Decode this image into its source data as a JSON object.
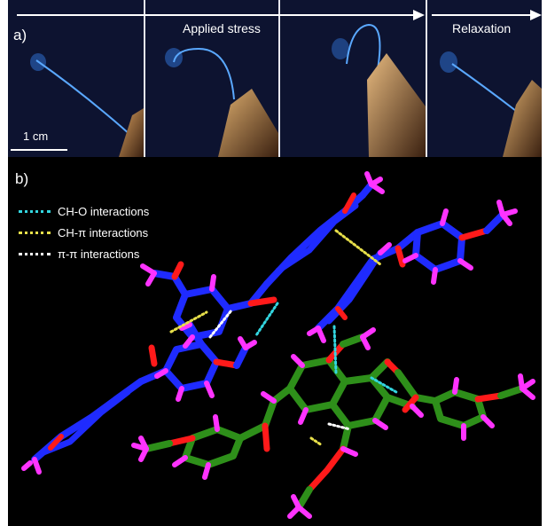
{
  "panel_a": {
    "label": "a)",
    "stage_applied": "Applied stress",
    "stage_relaxation": "Relaxation",
    "scale_label": "1 cm"
  },
  "panel_b": {
    "label": "b)",
    "legend": [
      {
        "text": "CH-O interactions",
        "color": "#33d6e0"
      },
      {
        "text": "CH-π interactions",
        "color": "#e8e04a"
      },
      {
        "text": "π-π interactions",
        "color": "#ffffff"
      }
    ]
  },
  "colors": {
    "background_a": "#0d1330",
    "fiber": "#5aa8ff",
    "molecule_blue": "#1f2bff",
    "molecule_green": "#2e8f1a",
    "hydrogen": "#ff33ff",
    "oxygen": "#ff1a1a"
  }
}
